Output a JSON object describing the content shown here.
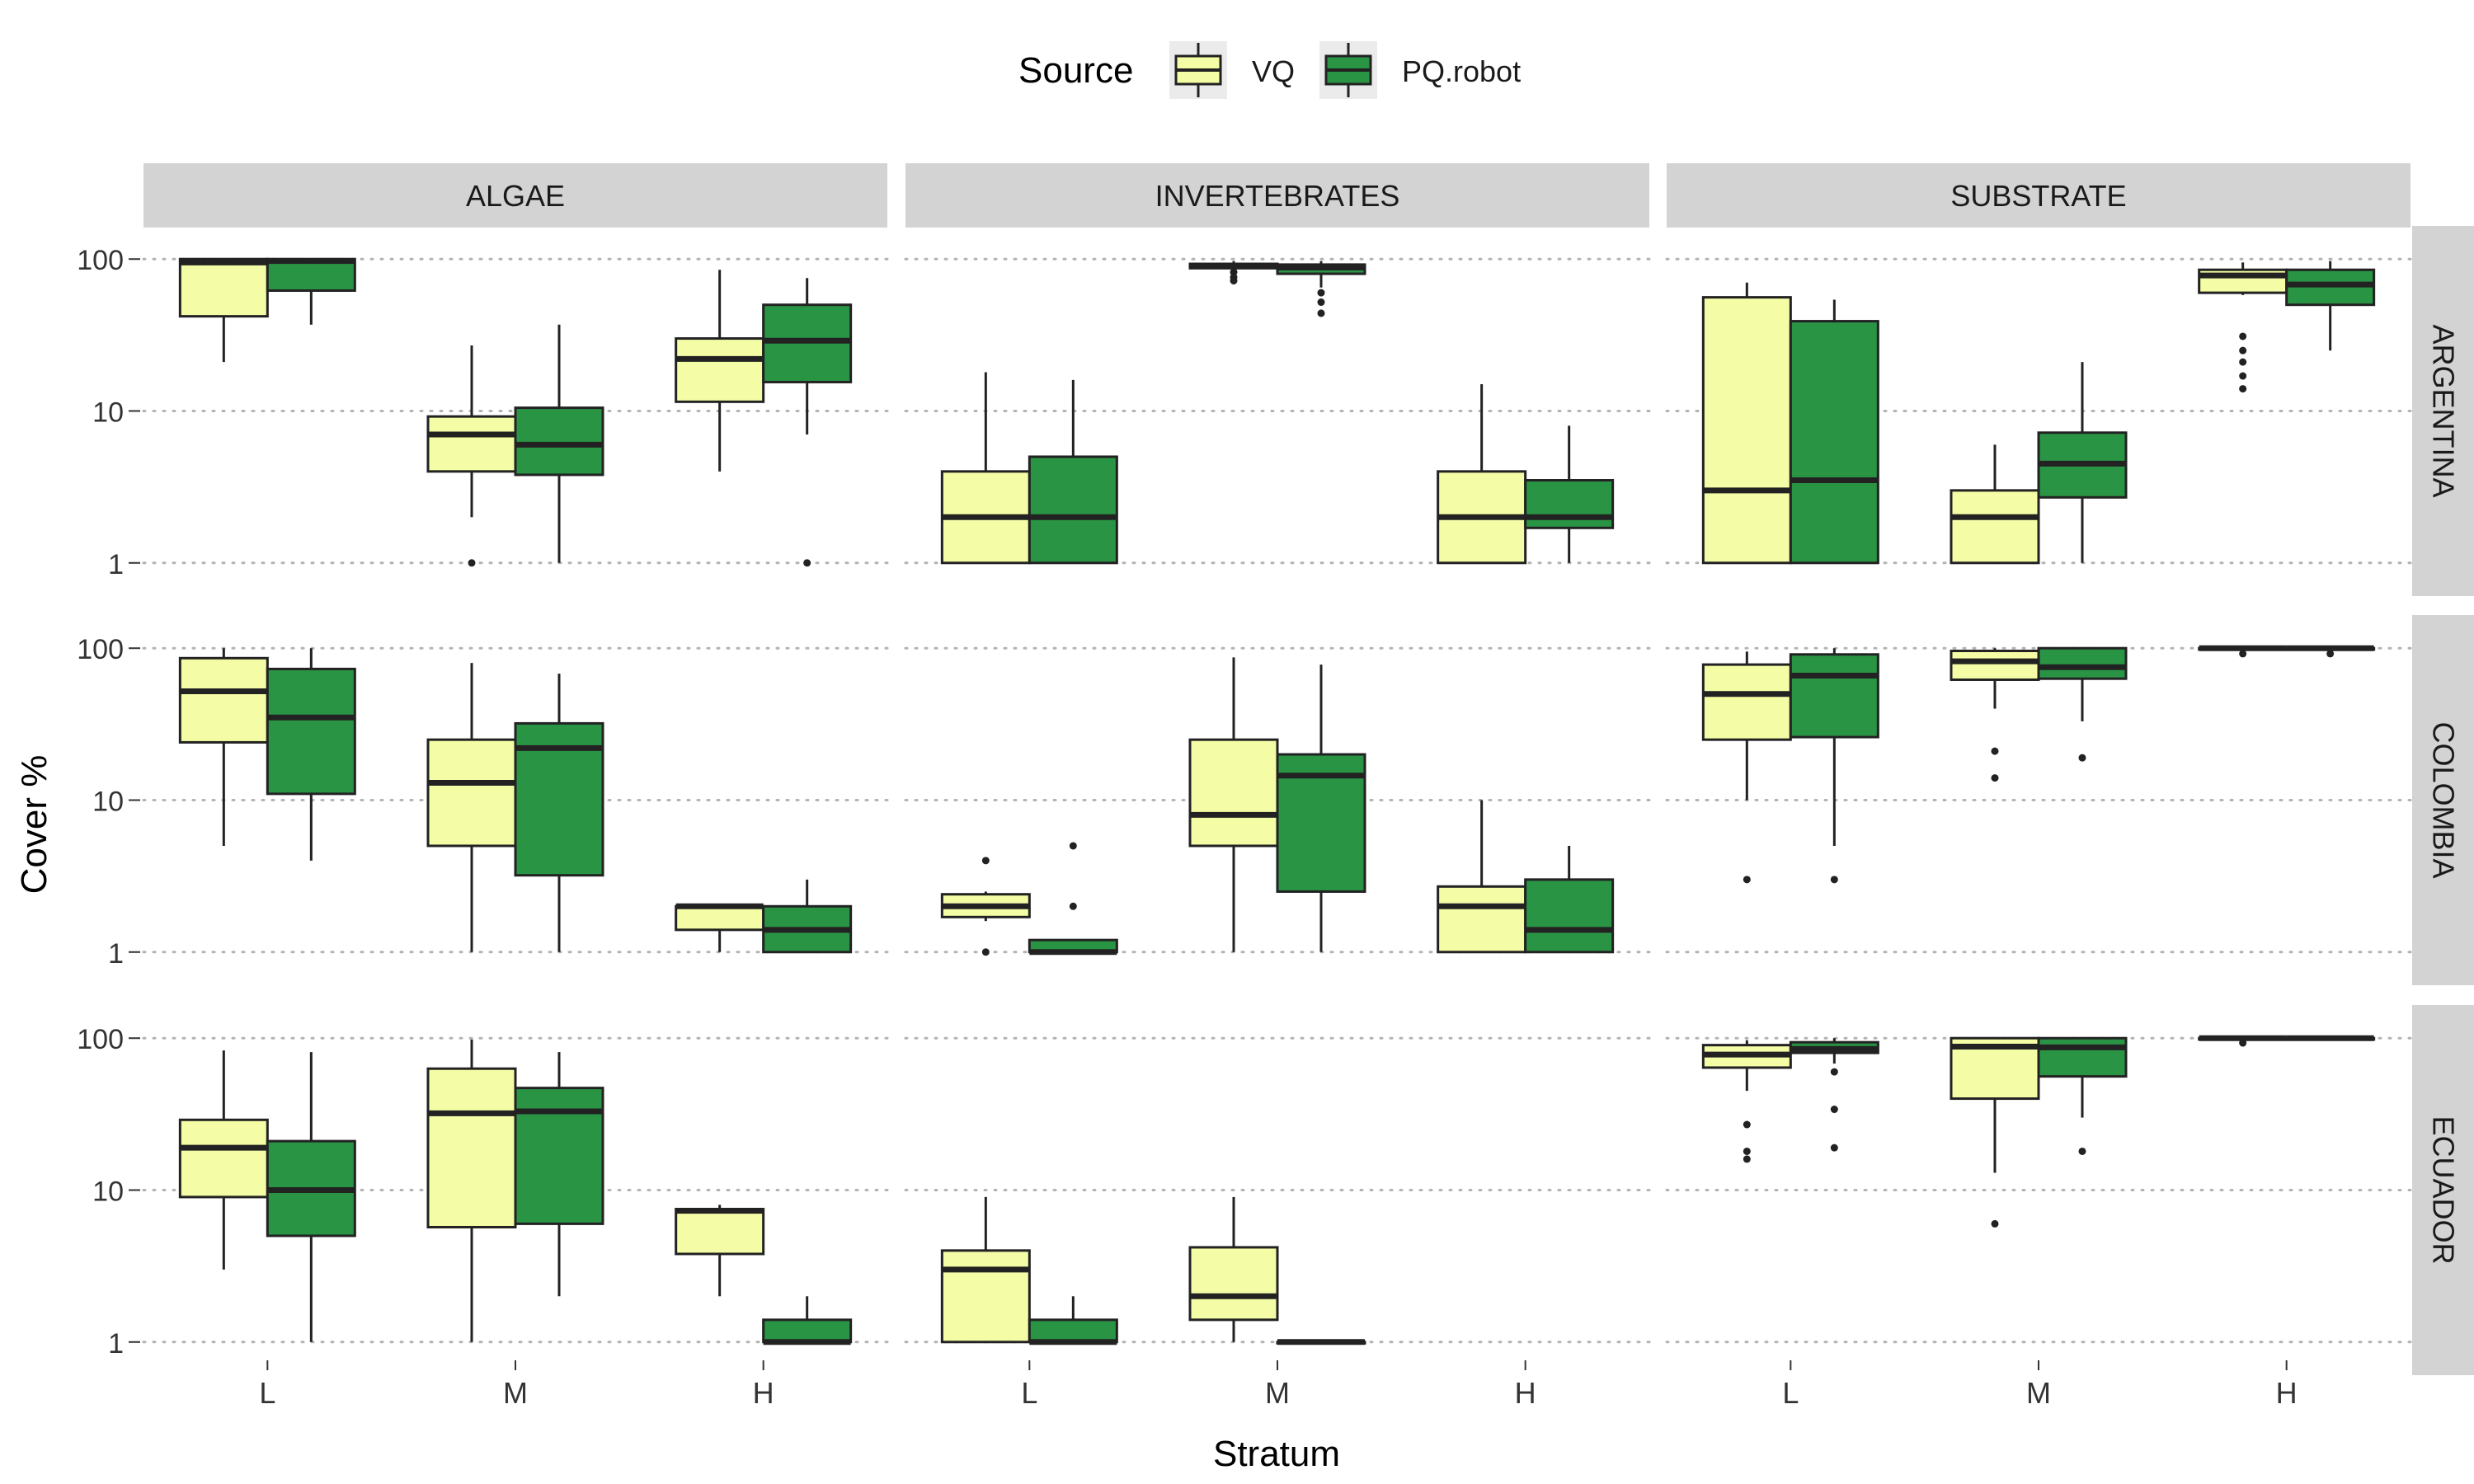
{
  "chart_data": {
    "type": "boxplot",
    "xlabel": "Stratum",
    "ylabel": "Cover %",
    "y_scale": "log10",
    "ylim": [
      1,
      100
    ],
    "y_ticks": [
      1,
      10,
      100
    ],
    "y_tick_labels": [
      "1",
      "10",
      "100"
    ],
    "grid": "dotted horizontal major lines",
    "legend": {
      "title": "Source",
      "position": "top",
      "entries": [
        "VQ",
        "PQ.robot"
      ]
    },
    "sources": [
      "VQ",
      "PQ.robot"
    ],
    "colors": {
      "VQ": "#f4fda5",
      "PQ.robot": "#2a9445",
      "strip": "#d3d3d3",
      "grid": "#b3b3b3",
      "outline": "#222222"
    },
    "categories": [
      "L",
      "M",
      "H"
    ],
    "col_facets": [
      "ALGAE",
      "INVERTEBRATES",
      "SUBSTRATE"
    ],
    "row_facets": [
      "ARGENTINA",
      "COLOMBIA",
      "ECUADOR"
    ],
    "panels": [
      {
        "row": "ARGENTINA",
        "col": "ALGAE",
        "boxes": [
          {
            "stratum": "L",
            "source": "VQ",
            "min": 21,
            "q1": 42,
            "median": 95,
            "q3": 100,
            "max": 100,
            "outliers": []
          },
          {
            "stratum": "L",
            "source": "PQ.robot",
            "min": 37,
            "q1": 62,
            "median": 97,
            "q3": 100,
            "max": 100,
            "outliers": []
          },
          {
            "stratum": "M",
            "source": "VQ",
            "min": 2,
            "q1": 4,
            "median": 7,
            "q3": 9.2,
            "max": 27,
            "outliers": [
              1
            ]
          },
          {
            "stratum": "M",
            "source": "PQ.robot",
            "min": 1,
            "q1": 3.8,
            "median": 6,
            "q3": 10.5,
            "max": 37,
            "outliers": []
          },
          {
            "stratum": "H",
            "source": "VQ",
            "min": 4,
            "q1": 11.5,
            "median": 22,
            "q3": 30,
            "max": 85,
            "outliers": []
          },
          {
            "stratum": "H",
            "source": "PQ.robot",
            "min": 7,
            "q1": 15.5,
            "median": 29,
            "q3": 50,
            "max": 75,
            "outliers": [
              1
            ]
          }
        ]
      },
      {
        "row": "ARGENTINA",
        "col": "INVERTEBRATES",
        "boxes": [
          {
            "stratum": "L",
            "source": "VQ",
            "min": 1,
            "q1": 1,
            "median": 2,
            "q3": 4,
            "max": 18,
            "outliers": []
          },
          {
            "stratum": "L",
            "source": "PQ.robot",
            "min": 1,
            "q1": 1,
            "median": 2,
            "q3": 5,
            "max": 16,
            "outliers": []
          },
          {
            "stratum": "M",
            "source": "VQ",
            "min": 86,
            "q1": 87,
            "median": 90,
            "q3": 93,
            "max": 97,
            "outliers": [
              72,
              76,
              82
            ]
          },
          {
            "stratum": "M",
            "source": "PQ.robot",
            "min": 65,
            "q1": 80,
            "median": 88,
            "q3": 92,
            "max": 97,
            "outliers": [
              44,
              52,
              60
            ]
          },
          {
            "stratum": "H",
            "source": "VQ",
            "min": 1,
            "q1": 1,
            "median": 2,
            "q3": 4,
            "max": 15,
            "outliers": []
          },
          {
            "stratum": "H",
            "source": "PQ.robot",
            "min": 1,
            "q1": 1.7,
            "median": 2,
            "q3": 3.5,
            "max": 8,
            "outliers": []
          }
        ]
      },
      {
        "row": "ARGENTINA",
        "col": "SUBSTRATE",
        "boxes": [
          {
            "stratum": "L",
            "source": "VQ",
            "min": 1,
            "q1": 1,
            "median": 3,
            "q3": 56,
            "max": 70,
            "outliers": []
          },
          {
            "stratum": "L",
            "source": "PQ.robot",
            "min": 1,
            "q1": 1,
            "median": 3.5,
            "q3": 39,
            "max": 54,
            "outliers": []
          },
          {
            "stratum": "M",
            "source": "VQ",
            "min": 1,
            "q1": 1,
            "median": 2,
            "q3": 3,
            "max": 6,
            "outliers": []
          },
          {
            "stratum": "M",
            "source": "PQ.robot",
            "min": 1,
            "q1": 2.7,
            "median": 4.5,
            "q3": 7.2,
            "max": 21,
            "outliers": []
          },
          {
            "stratum": "H",
            "source": "VQ",
            "min": 58,
            "q1": 60,
            "median": 78,
            "q3": 85,
            "max": 95,
            "outliers": [
              14,
              17,
              21,
              25,
              31
            ]
          },
          {
            "stratum": "H",
            "source": "PQ.robot",
            "min": 25,
            "q1": 50,
            "median": 68,
            "q3": 85,
            "max": 97,
            "outliers": []
          }
        ]
      },
      {
        "row": "COLOMBIA",
        "col": "ALGAE",
        "boxes": [
          {
            "stratum": "L",
            "source": "VQ",
            "min": 5,
            "q1": 24,
            "median": 52,
            "q3": 86,
            "max": 100,
            "outliers": []
          },
          {
            "stratum": "L",
            "source": "PQ.robot",
            "min": 4,
            "q1": 11,
            "median": 35,
            "q3": 73,
            "max": 100,
            "outliers": []
          },
          {
            "stratum": "M",
            "source": "VQ",
            "min": 1,
            "q1": 5,
            "median": 13,
            "q3": 25,
            "max": 80,
            "outliers": []
          },
          {
            "stratum": "M",
            "source": "PQ.robot",
            "min": 1,
            "q1": 3.2,
            "median": 22,
            "q3": 32,
            "max": 68,
            "outliers": []
          },
          {
            "stratum": "H",
            "source": "VQ",
            "min": 1,
            "q1": 1.4,
            "median": 2,
            "q3": 2,
            "max": 2,
            "outliers": []
          },
          {
            "stratum": "H",
            "source": "PQ.robot",
            "min": 1,
            "q1": 1,
            "median": 1.4,
            "q3": 2,
            "max": 3,
            "outliers": []
          }
        ]
      },
      {
        "row": "COLOMBIA",
        "col": "INVERTEBRATES",
        "boxes": [
          {
            "stratum": "L",
            "source": "VQ",
            "min": 1.6,
            "q1": 1.7,
            "median": 2,
            "q3": 2.4,
            "max": 2.5,
            "outliers": [
              1,
              4
            ]
          },
          {
            "stratum": "L",
            "source": "PQ.robot",
            "min": 1,
            "q1": 1,
            "median": 1,
            "q3": 1.2,
            "max": 1.2,
            "outliers": [
              2,
              5
            ]
          },
          {
            "stratum": "M",
            "source": "VQ",
            "min": 1,
            "q1": 5,
            "median": 8,
            "q3": 25,
            "max": 87,
            "outliers": []
          },
          {
            "stratum": "M",
            "source": "PQ.robot",
            "min": 1,
            "q1": 2.5,
            "median": 14.5,
            "q3": 20,
            "max": 78,
            "outliers": []
          },
          {
            "stratum": "H",
            "source": "VQ",
            "min": 1,
            "q1": 1,
            "median": 2,
            "q3": 2.7,
            "max": 10,
            "outliers": []
          },
          {
            "stratum": "H",
            "source": "PQ.robot",
            "min": 1,
            "q1": 1,
            "median": 1.4,
            "q3": 3,
            "max": 5,
            "outliers": []
          }
        ]
      },
      {
        "row": "COLOMBIA",
        "col": "SUBSTRATE",
        "boxes": [
          {
            "stratum": "L",
            "source": "VQ",
            "min": 10,
            "q1": 25,
            "median": 50,
            "q3": 78,
            "max": 95,
            "outliers": [
              3
            ]
          },
          {
            "stratum": "L",
            "source": "PQ.robot",
            "min": 5,
            "q1": 26,
            "median": 66,
            "q3": 91,
            "max": 100,
            "outliers": [
              3
            ]
          },
          {
            "stratum": "M",
            "source": "VQ",
            "min": 40,
            "q1": 62,
            "median": 82,
            "q3": 96,
            "max": 100,
            "outliers": [
              14,
              21
            ]
          },
          {
            "stratum": "M",
            "source": "PQ.robot",
            "min": 33,
            "q1": 63,
            "median": 75,
            "q3": 100,
            "max": 100,
            "outliers": [
              19
            ]
          },
          {
            "stratum": "H",
            "source": "VQ",
            "min": 98,
            "q1": 99,
            "median": 100,
            "q3": 100,
            "max": 100,
            "outliers": [
              92
            ]
          },
          {
            "stratum": "H",
            "source": "PQ.robot",
            "min": 98,
            "q1": 99,
            "median": 100,
            "q3": 100,
            "max": 100,
            "outliers": [
              92
            ]
          }
        ]
      },
      {
        "row": "ECUADOR",
        "col": "ALGAE",
        "boxes": [
          {
            "stratum": "L",
            "source": "VQ",
            "min": 3,
            "q1": 9,
            "median": 19,
            "q3": 29,
            "max": 83,
            "outliers": []
          },
          {
            "stratum": "L",
            "source": "PQ.robot",
            "min": 1,
            "q1": 5,
            "median": 10,
            "q3": 21,
            "max": 81,
            "outliers": []
          },
          {
            "stratum": "M",
            "source": "VQ",
            "min": 1,
            "q1": 5.7,
            "median": 32,
            "q3": 63,
            "max": 98,
            "outliers": []
          },
          {
            "stratum": "M",
            "source": "PQ.robot",
            "min": 2,
            "q1": 6,
            "median": 33,
            "q3": 47,
            "max": 81,
            "outliers": []
          },
          {
            "stratum": "H",
            "source": "VQ",
            "min": 2,
            "q1": 3.8,
            "median": 7.3,
            "q3": 7.5,
            "max": 8,
            "outliers": []
          },
          {
            "stratum": "H",
            "source": "PQ.robot",
            "min": 1,
            "q1": 1,
            "median": 1,
            "q3": 1.4,
            "max": 2,
            "outliers": []
          }
        ]
      },
      {
        "row": "ECUADOR",
        "col": "INVERTEBRATES",
        "boxes": [
          {
            "stratum": "L",
            "source": "VQ",
            "min": 1,
            "q1": 1,
            "median": 3,
            "q3": 4,
            "max": 9,
            "outliers": []
          },
          {
            "stratum": "L",
            "source": "PQ.robot",
            "min": 1,
            "q1": 1,
            "median": 1,
            "q3": 1.4,
            "max": 2,
            "outliers": []
          },
          {
            "stratum": "M",
            "source": "VQ",
            "min": 1,
            "q1": 1.4,
            "median": 2,
            "q3": 4.2,
            "max": 9,
            "outliers": []
          },
          {
            "stratum": "M",
            "source": "PQ.robot",
            "min": 1,
            "q1": 1,
            "median": 1,
            "q3": 1,
            "max": 1,
            "outliers": []
          }
        ]
      },
      {
        "row": "ECUADOR",
        "col": "SUBSTRATE",
        "boxes": [
          {
            "stratum": "L",
            "source": "VQ",
            "min": 45,
            "q1": 64,
            "median": 78,
            "q3": 90,
            "max": 97,
            "outliers": [
              16,
              18,
              27
            ]
          },
          {
            "stratum": "L",
            "source": "PQ.robot",
            "min": 68,
            "q1": 80,
            "median": 85,
            "q3": 94,
            "max": 100,
            "outliers": [
              19,
              34,
              60
            ]
          },
          {
            "stratum": "M",
            "source": "VQ",
            "min": 13,
            "q1": 40,
            "median": 88,
            "q3": 100,
            "max": 100,
            "outliers": [
              6
            ]
          },
          {
            "stratum": "M",
            "source": "PQ.robot",
            "min": 30,
            "q1": 56,
            "median": 87,
            "q3": 100,
            "max": 100,
            "outliers": [
              18
            ]
          },
          {
            "stratum": "H",
            "source": "VQ",
            "min": 98,
            "q1": 99,
            "median": 100,
            "q3": 100,
            "max": 100,
            "outliers": [
              93
            ]
          },
          {
            "stratum": "H",
            "source": "PQ.robot",
            "min": 98,
            "q1": 99,
            "median": 100,
            "q3": 100,
            "max": 100,
            "outliers": []
          }
        ]
      }
    ]
  }
}
